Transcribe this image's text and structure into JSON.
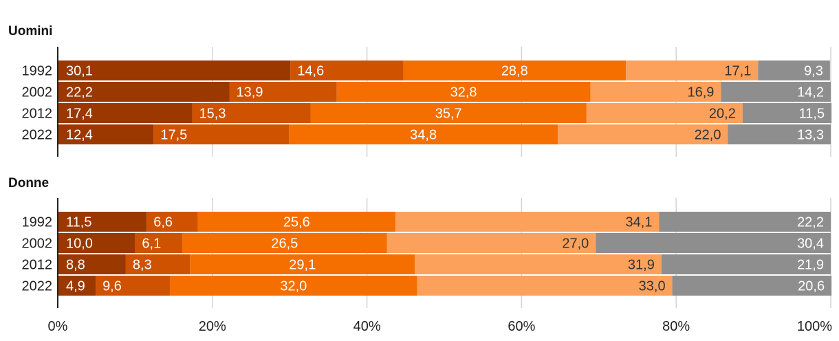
{
  "chart_data": {
    "type": "bar",
    "orientation": "horizontal",
    "stacked": true,
    "xlim": [
      0,
      100
    ],
    "x_ticks": [
      "0%",
      "20%",
      "40%",
      "60%",
      "80%",
      "100%"
    ],
    "x_tick_values": [
      0,
      20,
      40,
      60,
      80,
      100
    ],
    "grid": true,
    "legend": "none",
    "colors": [
      "#9a3800",
      "#cf5200",
      "#f46e00",
      "#fba15b",
      "#8e8e8e"
    ],
    "label_colors": [
      "#ffffff",
      "#ffffff",
      "#ffffff",
      "#333333",
      "#ffffff"
    ],
    "panels": [
      {
        "title": "Uomini",
        "categories": [
          "1992",
          "2002",
          "2012",
          "2022"
        ],
        "series": [
          {
            "values": [
              30.1,
              22.2,
              17.4,
              12.4
            ],
            "labels": [
              "30,1",
              "22,2",
              "17,4",
              "12,4"
            ]
          },
          {
            "values": [
              14.6,
              13.9,
              15.3,
              17.5
            ],
            "labels": [
              "14,6",
              "13,9",
              "15,3",
              "17,5"
            ]
          },
          {
            "values": [
              28.8,
              32.8,
              35.7,
              34.8
            ],
            "labels": [
              "28,8",
              "32,8",
              "35,7",
              "34,8"
            ]
          },
          {
            "values": [
              17.1,
              16.9,
              20.2,
              22.0
            ],
            "labels": [
              "17,1",
              "16,9",
              "20,2",
              "22,0"
            ]
          },
          {
            "values": [
              9.3,
              14.2,
              11.5,
              13.3
            ],
            "labels": [
              "9,3",
              "14,2",
              "11,5",
              "13,3"
            ]
          }
        ]
      },
      {
        "title": "Donne",
        "categories": [
          "1992",
          "2002",
          "2012",
          "2022"
        ],
        "series": [
          {
            "values": [
              11.5,
              10.0,
              8.8,
              4.9
            ],
            "labels": [
              "11,5",
              "10,0",
              "8,8",
              "4,9"
            ]
          },
          {
            "values": [
              6.6,
              6.1,
              8.3,
              9.6
            ],
            "labels": [
              "6,6",
              "6,1",
              "8,3",
              "9,6"
            ]
          },
          {
            "values": [
              25.6,
              26.5,
              29.1,
              32.0
            ],
            "labels": [
              "25,6",
              "26,5",
              "29,1",
              "32,0"
            ]
          },
          {
            "values": [
              34.1,
              27.0,
              31.9,
              33.0
            ],
            "labels": [
              "34,1",
              "27,0",
              "31,9",
              "33,0"
            ]
          },
          {
            "values": [
              22.2,
              30.4,
              21.9,
              20.6
            ],
            "labels": [
              "22,2",
              "30,4",
              "21,9",
              "20,6"
            ]
          }
        ]
      }
    ]
  }
}
